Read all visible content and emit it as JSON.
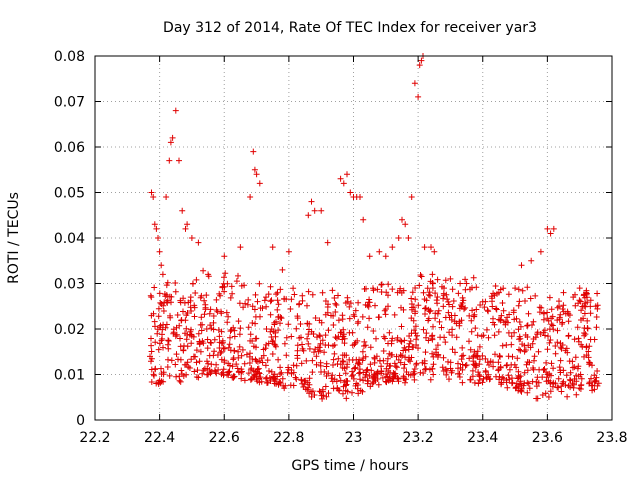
{
  "chart_data": {
    "type": "scatter",
    "title": "Day 312 of 2014, Rate Of TEC Index for receiver yar3",
    "xlabel": "GPS time / hours",
    "ylabel": "ROTI / TECUs",
    "xlim": [
      22.2,
      23.8
    ],
    "ylim": [
      0,
      0.08
    ],
    "xticks": [
      22.2,
      22.4,
      22.6,
      22.8,
      23.0,
      23.2,
      23.4,
      23.6,
      23.8
    ],
    "xtick_labels": [
      "22.2",
      "22.4",
      "22.6",
      "22.8",
      "23",
      "23.2",
      "23.4",
      "23.6",
      "23.8"
    ],
    "yticks": [
      0,
      0.01,
      0.02,
      0.03,
      0.04,
      0.05,
      0.06,
      0.07,
      0.08
    ],
    "ytick_labels": [
      "0",
      "0.01",
      "0.02",
      "0.03",
      "0.04",
      "0.05",
      "0.06",
      "0.07",
      "0.08"
    ],
    "grid": true,
    "marker": "+",
    "series": [
      {
        "name": "ROTI",
        "color": "#e00000",
        "x": [
          22.375,
          22.38,
          22.385,
          22.39,
          22.395,
          22.4,
          22.405,
          22.41,
          22.42,
          22.43,
          22.435,
          22.44,
          22.45,
          22.46,
          22.47,
          22.48,
          22.485,
          22.5,
          22.52,
          22.69,
          22.695,
          22.7,
          22.71,
          22.68,
          22.87,
          22.88,
          22.86,
          22.9,
          22.96,
          22.97,
          22.98,
          22.99,
          23.0,
          23.01,
          23.02,
          23.03,
          23.14,
          23.15,
          23.16,
          23.17,
          23.18,
          23.19,
          23.2,
          23.21,
          23.215,
          23.205,
          23.22,
          23.24,
          23.25,
          23.6,
          23.61,
          23.62,
          22.6,
          22.65,
          22.75,
          22.8,
          22.92,
          23.05,
          23.1,
          23.12,
          23.28,
          23.3,
          23.35,
          23.4,
          23.45,
          23.5,
          23.55,
          23.58,
          23.65,
          23.7,
          23.72,
          23.75,
          23.68,
          23.52,
          23.33,
          23.08,
          22.78,
          22.55
        ],
        "y": [
          0.05,
          0.049,
          0.043,
          0.042,
          0.04,
          0.037,
          0.034,
          0.032,
          0.049,
          0.057,
          0.061,
          0.062,
          0.068,
          0.057,
          0.046,
          0.042,
          0.043,
          0.04,
          0.039,
          0.059,
          0.055,
          0.054,
          0.052,
          0.049,
          0.048,
          0.046,
          0.045,
          0.046,
          0.053,
          0.052,
          0.054,
          0.05,
          0.049,
          0.049,
          0.049,
          0.044,
          0.04,
          0.044,
          0.043,
          0.04,
          0.049,
          0.074,
          0.071,
          0.079,
          0.08,
          0.078,
          0.038,
          0.038,
          0.037,
          0.042,
          0.041,
          0.042,
          0.036,
          0.038,
          0.038,
          0.037,
          0.039,
          0.036,
          0.036,
          0.038,
          0.029,
          0.031,
          0.03,
          0.026,
          0.028,
          0.029,
          0.035,
          0.037,
          0.028,
          0.029,
          0.028,
          0.025,
          0.027,
          0.034,
          0.03,
          0.037,
          0.033,
          0.032
        ]
      }
    ],
    "dense_band": {
      "note": "bulk of points (~0.004–0.030) spread across 22.37–23.76 h",
      "x_range": [
        22.37,
        23.76
      ],
      "y_range": [
        0.004,
        0.03
      ],
      "count": 1400
    }
  }
}
